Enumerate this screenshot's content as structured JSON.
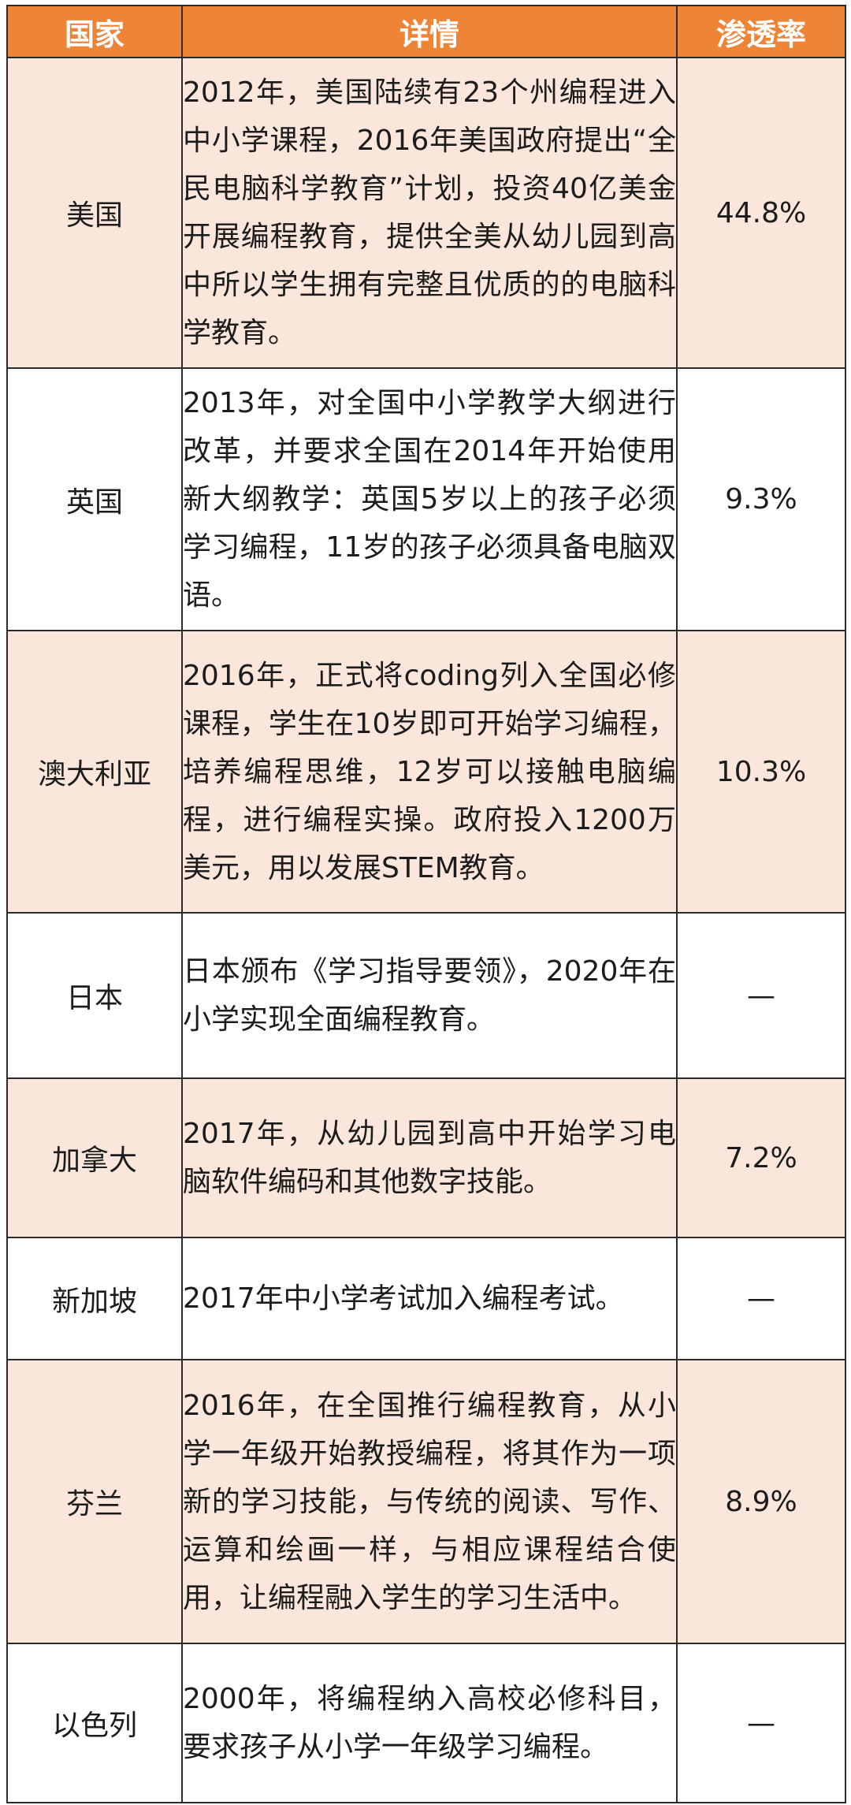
{
  "table": {
    "headers": {
      "country": "国家",
      "detail": "详情",
      "rate": "渗透率"
    },
    "rows": [
      {
        "country": "美国",
        "detail": "2012年，美国陆续有23个州编程进入中小学课程，2016年美国政府提出“全民电脑科学教育”计划，投资40亿美金开展编程教育，提供全美从幼儿园到高中所以学生拥有完整且优质的的电脑科学教育。",
        "rate": "44.8%"
      },
      {
        "country": "英国",
        "detail": "2013年，对全国中小学教学大纲进行改革，并要求全国在2014年开始使用新大纲教学：英国5岁以上的孩子必须学习编程，11岁的孩子必须具备电脑双语。",
        "rate": "9.3%"
      },
      {
        "country": "澳大利亚",
        "detail": "2016年，正式将coding列入全国必修课程，学生在10岁即可开始学习编程，培养编程思维，12岁可以接触电脑编程，进行编程实操。政府投入1200万美元，用以发展STEM教育。",
        "rate": "10.3%"
      },
      {
        "country": "日本",
        "detail": "日本颁布《学习指导要领》，2020年在小学实现全面编程教育。",
        "rate": "—"
      },
      {
        "country": "加拿大",
        "detail": "2017年，从幼儿园到高中开始学习电脑软件编码和其他数字技能。",
        "rate": "7.2%"
      },
      {
        "country": "新加坡",
        "detail": "2017年中小学考试加入编程考试。",
        "rate": "—"
      },
      {
        "country": "芬兰",
        "detail": "2016年，在全国推行编程教育，从小学一年级开始教授编程，将其作为一项新的学习技能，与传统的阅读、写作、运算和绘画一样，与相应课程结合使用，让编程融入学生的学习生活中。",
        "rate": "8.9%"
      },
      {
        "country": "以色列",
        "detail": "2000年，将编程纳入高校必修科目，要求孩子从小学一年级学习编程。",
        "rate": "—"
      }
    ]
  },
  "colors": {
    "header_bg": "#ee8436",
    "header_text": "#ffffff",
    "shaded_row_bg": "#fbe6dc",
    "plain_row_bg": "#ffffff",
    "border": "#2b2b2b"
  }
}
